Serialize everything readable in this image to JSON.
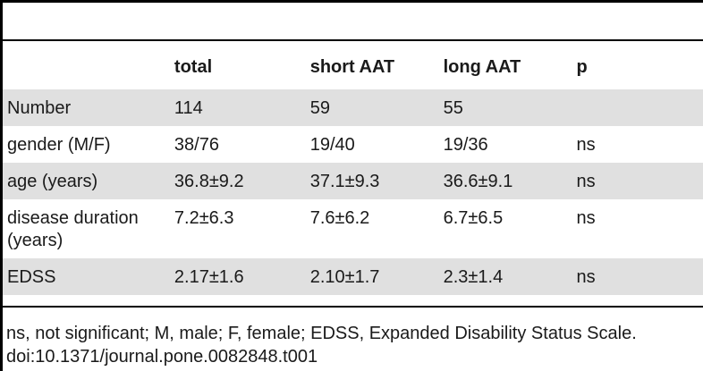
{
  "table": {
    "headers": [
      "",
      "total",
      "short AAT",
      "long AAT",
      "p"
    ],
    "rows": [
      [
        "Number",
        "114",
        "59",
        "55",
        ""
      ],
      [
        "gender (M/F)",
        "38/76",
        "19/40",
        "19/36",
        "ns"
      ],
      [
        "age (years)",
        "36.8±9.2",
        "37.1±9.3",
        "36.6±9.1",
        "ns"
      ],
      [
        "disease duration (years)",
        "7.2±6.3",
        "7.6±6.2",
        "6.7±6.5",
        "ns"
      ],
      [
        "EDSS",
        "2.17±1.6",
        "2.10±1.7",
        "2.3±1.4",
        "ns"
      ]
    ]
  },
  "footnote": {
    "line1": "ns, not significant; M, male; F, female; EDSS, Expanded Disability Status Scale.",
    "line2": "doi:10.1371/journal.pone.0082848.t001"
  },
  "colors": {
    "row_shade": "#e0e0e0",
    "rule": "#000000"
  }
}
